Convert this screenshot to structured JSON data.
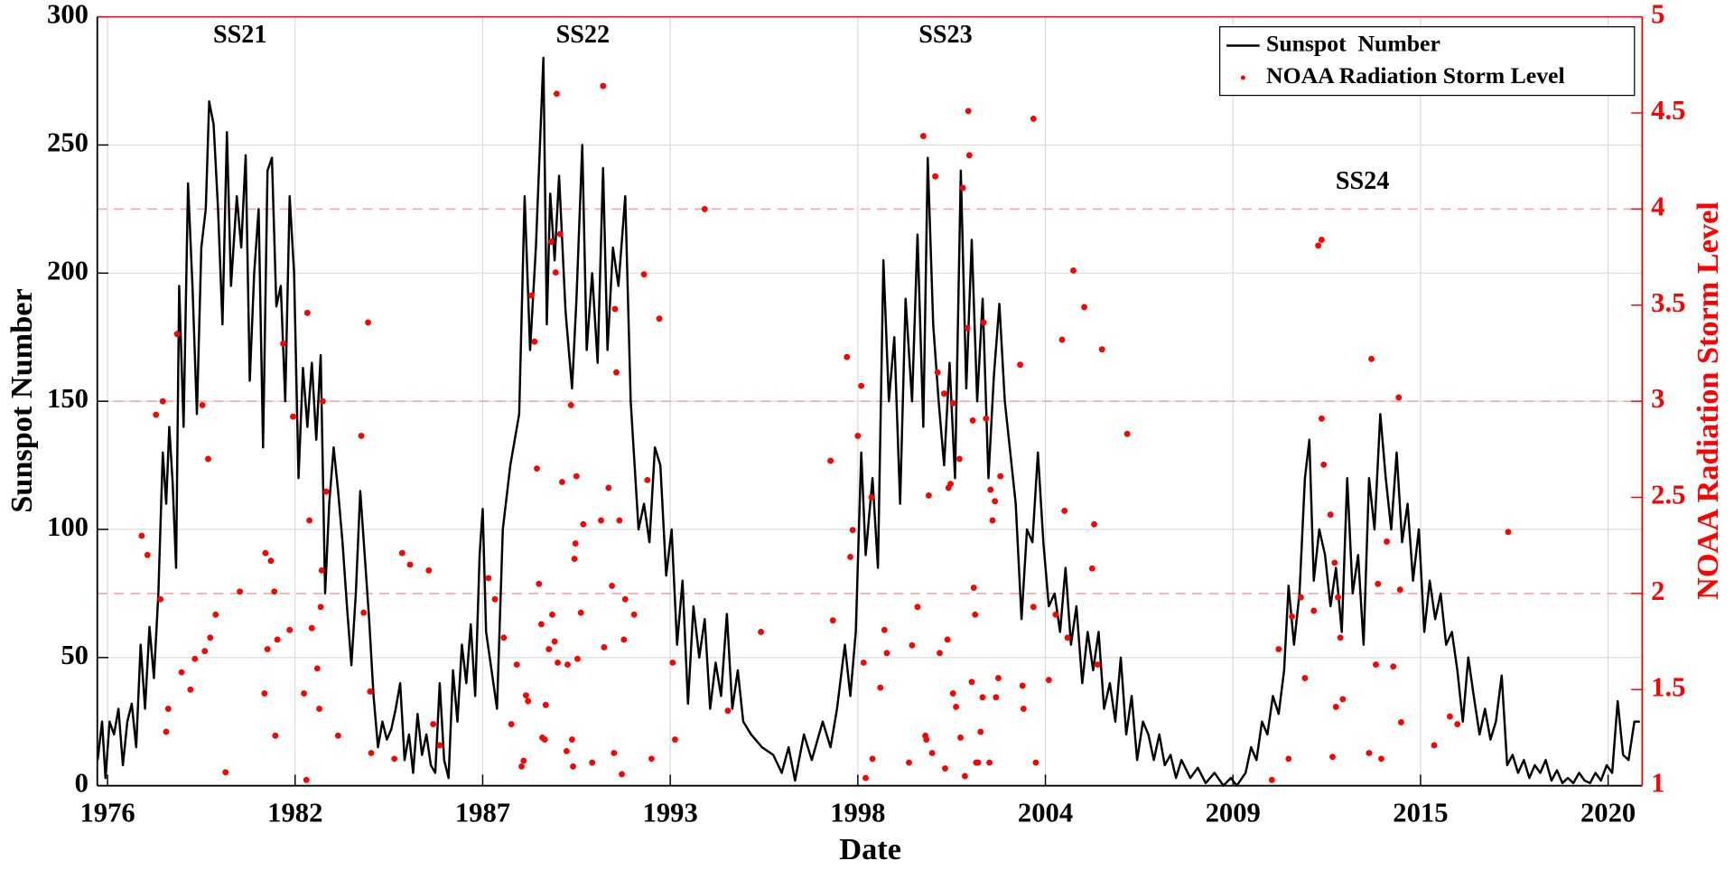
{
  "chart_data": {
    "type": "line",
    "xlabel": "Date",
    "ylabel": "Sunspot Number",
    "y2label": "NOAA Radiation Storm Level",
    "annotations": [
      "SS21",
      "SS22",
      "SS23",
      "SS24"
    ],
    "xlim": [
      1975.7,
      2021.0
    ],
    "xticks": [
      {
        "value": 1976,
        "label": "1976"
      },
      {
        "value": 1981.5,
        "label": "1982"
      },
      {
        "value": 1987,
        "label": "1987"
      },
      {
        "value": 1992.5,
        "label": "1993"
      },
      {
        "value": 1998,
        "label": "1998"
      },
      {
        "value": 2003.5,
        "label": "2004"
      },
      {
        "value": 2009,
        "label": "2009"
      },
      {
        "value": 2014.5,
        "label": "2015"
      },
      {
        "value": 2020,
        "label": "2020"
      }
    ],
    "ylim": [
      0,
      300
    ],
    "yticks": [
      0,
      50,
      100,
      150,
      200,
      250,
      300
    ],
    "y2lim": [
      1,
      5
    ],
    "y2ticks": [
      1,
      1.5,
      2,
      2.5,
      3,
      3.5,
      4,
      4.5,
      5
    ],
    "y2color": "#ff0000",
    "grid": true,
    "legend": "upper right",
    "reference_lines": {
      "axis": "y2",
      "values": [
        2,
        3,
        4
      ],
      "color": "#f4a6a6"
    },
    "series": [
      {
        "name": "Sunspot  Number",
        "type": "line",
        "color": "#000000",
        "x": [
          1975.71,
          1975.84,
          1975.94,
          1976.06,
          1976.19,
          1976.32,
          1976.45,
          1976.58,
          1976.71,
          1976.84,
          1976.97,
          1977.1,
          1977.23,
          1977.36,
          1977.49,
          1977.62,
          1977.72,
          1977.81,
          1977.91,
          1978.01,
          1978.1,
          1978.23,
          1978.36,
          1978.49,
          1978.62,
          1978.75,
          1978.88,
          1978.98,
          1979.11,
          1979.24,
          1979.37,
          1979.5,
          1979.62,
          1979.79,
          1979.92,
          1980.05,
          1980.17,
          1980.3,
          1980.43,
          1980.56,
          1980.69,
          1980.82,
          1980.95,
          1981.08,
          1981.21,
          1981.34,
          1981.47,
          1981.6,
          1981.73,
          1981.86,
          1981.99,
          1982.12,
          1982.25,
          1982.38,
          1982.5,
          1982.63,
          1982.76,
          1982.89,
          1983.02,
          1983.15,
          1983.28,
          1983.41,
          1983.54,
          1983.67,
          1983.8,
          1983.93,
          1984.06,
          1984.19,
          1984.32,
          1984.45,
          1984.58,
          1984.71,
          1984.84,
          1984.96,
          1985.09,
          1985.22,
          1985.35,
          1985.48,
          1985.61,
          1985.74,
          1985.87,
          1986.0,
          1986.13,
          1986.26,
          1986.39,
          1986.52,
          1986.65,
          1986.78,
          1986.91,
          1987.0,
          1987.1,
          1987.42,
          1987.59,
          1987.81,
          1988.07,
          1988.23,
          1988.39,
          1988.56,
          1988.78,
          1988.88,
          1988.98,
          1989.11,
          1989.24,
          1989.43,
          1989.62,
          1989.75,
          1989.92,
          1990.05,
          1990.21,
          1990.37,
          1990.53,
          1990.66,
          1990.82,
          1990.98,
          1991.18,
          1991.34,
          1991.57,
          1991.73,
          1991.89,
          1992.05,
          1992.21,
          1992.38,
          1992.54,
          1992.7,
          1992.86,
          1993.02,
          1993.18,
          1993.35,
          1993.51,
          1993.67,
          1993.83,
          1993.99,
          1994.16,
          1994.32,
          1994.48,
          1994.64,
          1994.87,
          1995.19,
          1995.52,
          1995.77,
          1995.97,
          1996.16,
          1996.42,
          1996.65,
          1996.97,
          1997.2,
          1997.39,
          1997.62,
          1997.78,
          1997.94,
          1998.1,
          1998.23,
          1998.43,
          1998.59,
          1998.75,
          1998.91,
          1999.07,
          1999.24,
          1999.4,
          1999.59,
          1999.75,
          1999.92,
          2000.05,
          2000.21,
          2000.37,
          2000.53,
          2000.69,
          2000.85,
          2001.02,
          2001.18,
          2001.34,
          2001.5,
          2001.66,
          2001.83,
          2001.99,
          2002.15,
          2002.31,
          2002.47,
          2002.63,
          2002.8,
          2002.96,
          2003.12,
          2003.28,
          2003.44,
          2003.6,
          2003.77,
          2003.93,
          2004.09,
          2004.25,
          2004.41,
          2004.58,
          2004.74,
          2004.9,
          2005.06,
          2005.22,
          2005.39,
          2005.55,
          2005.71,
          2005.87,
          2006.03,
          2006.19,
          2006.36,
          2006.52,
          2006.68,
          2006.84,
          2007.0,
          2007.17,
          2007.33,
          2007.49,
          2007.75,
          2007.97,
          2008.2,
          2008.46,
          2008.72,
          2008.94,
          2009.11,
          2009.37,
          2009.53,
          2009.69,
          2009.85,
          2010.01,
          2010.17,
          2010.34,
          2010.5,
          2010.63,
          2010.79,
          2010.95,
          2011.11,
          2011.24,
          2011.37,
          2011.53,
          2011.7,
          2011.86,
          2012.02,
          2012.19,
          2012.35,
          2012.51,
          2012.67,
          2012.83,
          2012.99,
          2013.15,
          2013.32,
          2013.48,
          2013.64,
          2013.8,
          2013.96,
          2014.12,
          2014.28,
          2014.45,
          2014.61,
          2014.77,
          2014.93,
          2015.09,
          2015.25,
          2015.42,
          2015.58,
          2015.74,
          2015.9,
          2016.06,
          2016.23,
          2016.39,
          2016.55,
          2016.71,
          2016.88,
          2017.04,
          2017.2,
          2017.36,
          2017.53,
          2017.69,
          2017.85,
          2018.01,
          2018.17,
          2018.34,
          2018.5,
          2018.66,
          2018.82,
          2018.98,
          2019.15,
          2019.31,
          2019.47,
          2019.63,
          2019.79,
          2019.96,
          2020.12,
          2020.28,
          2020.44,
          2020.6,
          2020.77,
          2020.93
        ],
        "values": [
          10,
          25,
          3,
          25,
          20,
          30,
          8,
          25,
          32,
          15,
          55,
          30,
          62,
          42,
          75,
          130,
          110,
          140,
          118,
          85,
          195,
          140,
          235,
          195,
          145,
          210,
          225,
          267,
          258,
          225,
          180,
          255,
          195,
          230,
          210,
          246,
          158,
          200,
          225,
          132,
          240,
          245,
          187,
          195,
          150,
          230,
          200,
          120,
          163,
          140,
          165,
          135,
          168,
          75,
          110,
          132,
          115,
          95,
          70,
          47,
          75,
          115,
          90,
          65,
          35,
          15,
          25,
          18,
          22,
          30,
          40,
          10,
          20,
          5,
          28,
          12,
          20,
          8,
          5,
          40,
          10,
          3,
          45,
          25,
          55,
          40,
          63,
          35,
          90,
          108,
          60,
          30,
          100,
          125,
          145,
          230,
          170,
          210,
          284,
          180,
          231,
          205,
          238,
          185,
          155,
          190,
          250,
          170,
          200,
          165,
          241,
          170,
          210,
          195,
          230,
          150,
          100,
          110,
          95,
          132,
          125,
          82,
          100,
          55,
          80,
          32,
          70,
          50,
          65,
          30,
          48,
          35,
          67,
          30,
          45,
          25,
          20,
          15,
          12,
          5,
          15,
          2,
          20,
          10,
          25,
          15,
          30,
          55,
          35,
          60,
          130,
          90,
          120,
          85,
          205,
          150,
          175,
          110,
          190,
          150,
          215,
          140,
          245,
          180,
          150,
          125,
          165,
          120,
          240,
          155,
          213,
          150,
          190,
          120,
          160,
          188,
          150,
          130,
          110,
          65,
          100,
          95,
          130,
          95,
          70,
          75,
          60,
          85,
          55,
          70,
          40,
          60,
          45,
          60,
          30,
          40,
          25,
          50,
          20,
          35,
          10,
          25,
          20,
          10,
          20,
          8,
          12,
          3,
          10,
          3,
          7,
          1,
          5,
          0,
          3,
          0,
          5,
          15,
          10,
          25,
          20,
          35,
          28,
          45,
          78,
          55,
          75,
          120,
          135,
          80,
          100,
          90,
          70,
          85,
          60,
          120,
          75,
          90,
          55,
          120,
          100,
          145,
          120,
          100,
          130,
          95,
          110,
          80,
          100,
          60,
          80,
          65,
          75,
          55,
          60,
          45,
          25,
          50,
          35,
          20,
          30,
          18,
          25,
          43,
          8,
          12,
          5,
          10,
          3,
          8,
          5,
          10,
          2,
          6,
          1,
          3,
          1,
          5,
          2,
          1,
          5,
          2,
          8,
          5,
          33,
          12,
          10,
          25,
          25
        ]
      },
      {
        "name": "NOAA Radiation Storm Level",
        "type": "scatter",
        "axis": "y2",
        "color": "#ff0000",
        "x": [
          1977.0,
          1977.17,
          1977.42,
          1977.55,
          1977.62,
          1977.72,
          1977.78,
          1978.04,
          1978.17,
          1978.43,
          1978.56,
          1978.78,
          1978.85,
          1978.95,
          1979.01,
          1979.17,
          1979.46,
          1979.88,
          1980.6,
          1980.63,
          1980.69,
          1980.79,
          1980.89,
          1980.92,
          1980.98,
          1981.15,
          1981.34,
          1981.44,
          1981.76,
          1981.83,
          1981.86,
          1981.92,
          1981.99,
          1982.15,
          1982.21,
          1982.25,
          1982.28,
          1982.31,
          1982.41,
          1982.76,
          1983.44,
          1983.51,
          1983.64,
          1983.7,
          1983.73,
          1984.41,
          1984.64,
          1984.87,
          1985.42,
          1985.55,
          1985.74,
          1987.17,
          1987.36,
          1987.62,
          1987.84,
          1988.0,
          1988.14,
          1988.2,
          1988.27,
          1988.33,
          1988.43,
          1988.52,
          1988.59,
          1988.65,
          1988.72,
          1988.75,
          1988.82,
          1988.85,
          1988.94,
          1989.01,
          1989.04,
          1989.11,
          1989.14,
          1989.17,
          1989.2,
          1989.27,
          1989.33,
          1989.46,
          1989.49,
          1989.59,
          1989.62,
          1989.65,
          1989.69,
          1989.72,
          1989.75,
          1989.78,
          1989.88,
          1989.95,
          1990.21,
          1990.47,
          1990.53,
          1990.56,
          1990.69,
          1990.79,
          1990.85,
          1990.88,
          1990.92,
          1991.01,
          1991.08,
          1991.14,
          1991.18,
          1991.44,
          1991.73,
          1991.83,
          1991.95,
          1992.18,
          1992.57,
          1992.64,
          1993.51,
          1994.19,
          1995.16,
          1997.2,
          1997.27,
          1997.68,
          1997.78,
          1997.85,
          1998.0,
          1998.1,
          1998.17,
          1998.23,
          1998.4,
          1998.43,
          1998.66,
          1998.78,
          1998.85,
          1999.5,
          1999.59,
          1999.75,
          1999.92,
          1999.98,
          2000.01,
          2000.08,
          2000.18,
          2000.27,
          2000.34,
          2000.4,
          2000.53,
          2000.56,
          2000.63,
          2000.66,
          2000.72,
          2000.79,
          2000.79,
          2000.88,
          2000.98,
          2001.01,
          2001.08,
          2001.14,
          2001.21,
          2001.24,
          2001.27,
          2001.34,
          2001.37,
          2001.4,
          2001.44,
          2001.47,
          2001.53,
          2001.6,
          2001.66,
          2001.69,
          2001.76,
          2001.86,
          2001.89,
          2001.95,
          2002.02,
          2002.05,
          2002.12,
          2002.18,
          2002.76,
          2002.83,
          2002.86,
          2003.15,
          2003.15,
          2003.22,
          2003.6,
          2003.8,
          2003.99,
          2004.06,
          2004.15,
          2004.32,
          2004.64,
          2004.87,
          2004.93,
          2005.03,
          2005.16,
          2005.9,
          2010.14,
          2010.34,
          2010.63,
          2010.73,
          2010.99,
          2011.11,
          2011.37,
          2011.5,
          2011.6,
          2011.6,
          2011.66,
          2011.86,
          2011.92,
          2011.98,
          2012.02,
          2012.08,
          2012.15,
          2012.22,
          2012.99,
          2013.06,
          2013.19,
          2013.25,
          2013.35,
          2013.51,
          2013.7,
          2013.86,
          2013.9,
          2013.93,
          2014.9,
          2015.36,
          2015.58,
          2017.07
        ],
        "values": [
          2.3,
          2.2,
          2.93,
          1.97,
          3.0,
          1.28,
          1.4,
          3.35,
          1.59,
          1.5,
          1.66,
          2.98,
          1.7,
          2.7,
          1.77,
          1.89,
          1.07,
          2.01,
          1.48,
          2.21,
          1.71,
          2.17,
          2.01,
          1.26,
          1.76,
          3.3,
          1.81,
          2.92,
          1.48,
          1.03,
          3.46,
          2.38,
          1.82,
          1.61,
          1.4,
          1.93,
          2.12,
          3.0,
          2.53,
          1.26,
          2.82,
          1.9,
          3.41,
          1.49,
          1.17,
          1.14,
          2.21,
          2.15,
          2.12,
          1.32,
          1.21,
          2.08,
          1.97,
          1.77,
          1.32,
          1.63,
          1.1,
          1.13,
          1.47,
          1.44,
          3.55,
          3.31,
          2.65,
          2.05,
          1.84,
          1.25,
          1.24,
          1.42,
          1.71,
          3.83,
          1.89,
          1.75,
          3.67,
          4.6,
          1.64,
          3.87,
          2.58,
          1.18,
          1.63,
          2.98,
          1.24,
          1.1,
          2.18,
          2.26,
          2.61,
          1.66,
          1.9,
          2.36,
          1.12,
          2.38,
          4.64,
          1.72,
          2.55,
          2.04,
          1.17,
          3.48,
          3.15,
          2.38,
          1.06,
          1.76,
          1.97,
          1.89,
          3.66,
          2.59,
          1.14,
          3.43,
          1.64,
          1.24,
          4.0,
          1.39,
          1.8,
          2.69,
          1.86,
          3.23,
          2.19,
          2.33,
          2.82,
          3.08,
          1.64,
          1.04,
          2.5,
          1.14,
          1.51,
          1.81,
          1.69,
          1.12,
          1.73,
          1.93,
          4.38,
          1.26,
          1.24,
          2.51,
          1.17,
          4.17,
          3.15,
          1.69,
          3.04,
          1.09,
          1.76,
          2.55,
          2.57,
          2.99,
          1.48,
          1.41,
          2.7,
          1.25,
          4.11,
          1.05,
          3.38,
          4.51,
          4.28,
          1.54,
          2.9,
          2.03,
          1.89,
          1.12,
          1.12,
          1.28,
          1.46,
          3.41,
          2.91,
          1.12,
          2.54,
          2.38,
          2.48,
          1.46,
          1.56,
          2.61,
          3.19,
          1.52,
          1.4,
          4.47,
          1.93,
          1.12,
          1.55,
          1.89,
          3.32,
          2.43,
          1.77,
          3.68,
          3.49,
          2.13,
          2.36,
          1.63,
          3.27,
          2.83,
          1.03,
          1.71,
          1.14,
          1.88,
          1.98,
          1.56,
          1.91,
          3.81,
          3.84,
          2.91,
          2.67,
          2.41,
          1.15,
          2.16,
          1.41,
          1.98,
          1.77,
          1.45,
          1.17,
          3.22,
          1.63,
          2.05,
          1.14,
          2.27,
          1.62,
          3.02,
          2.02,
          1.33,
          1.21,
          1.36,
          1.32,
          2.32
        ]
      }
    ]
  }
}
